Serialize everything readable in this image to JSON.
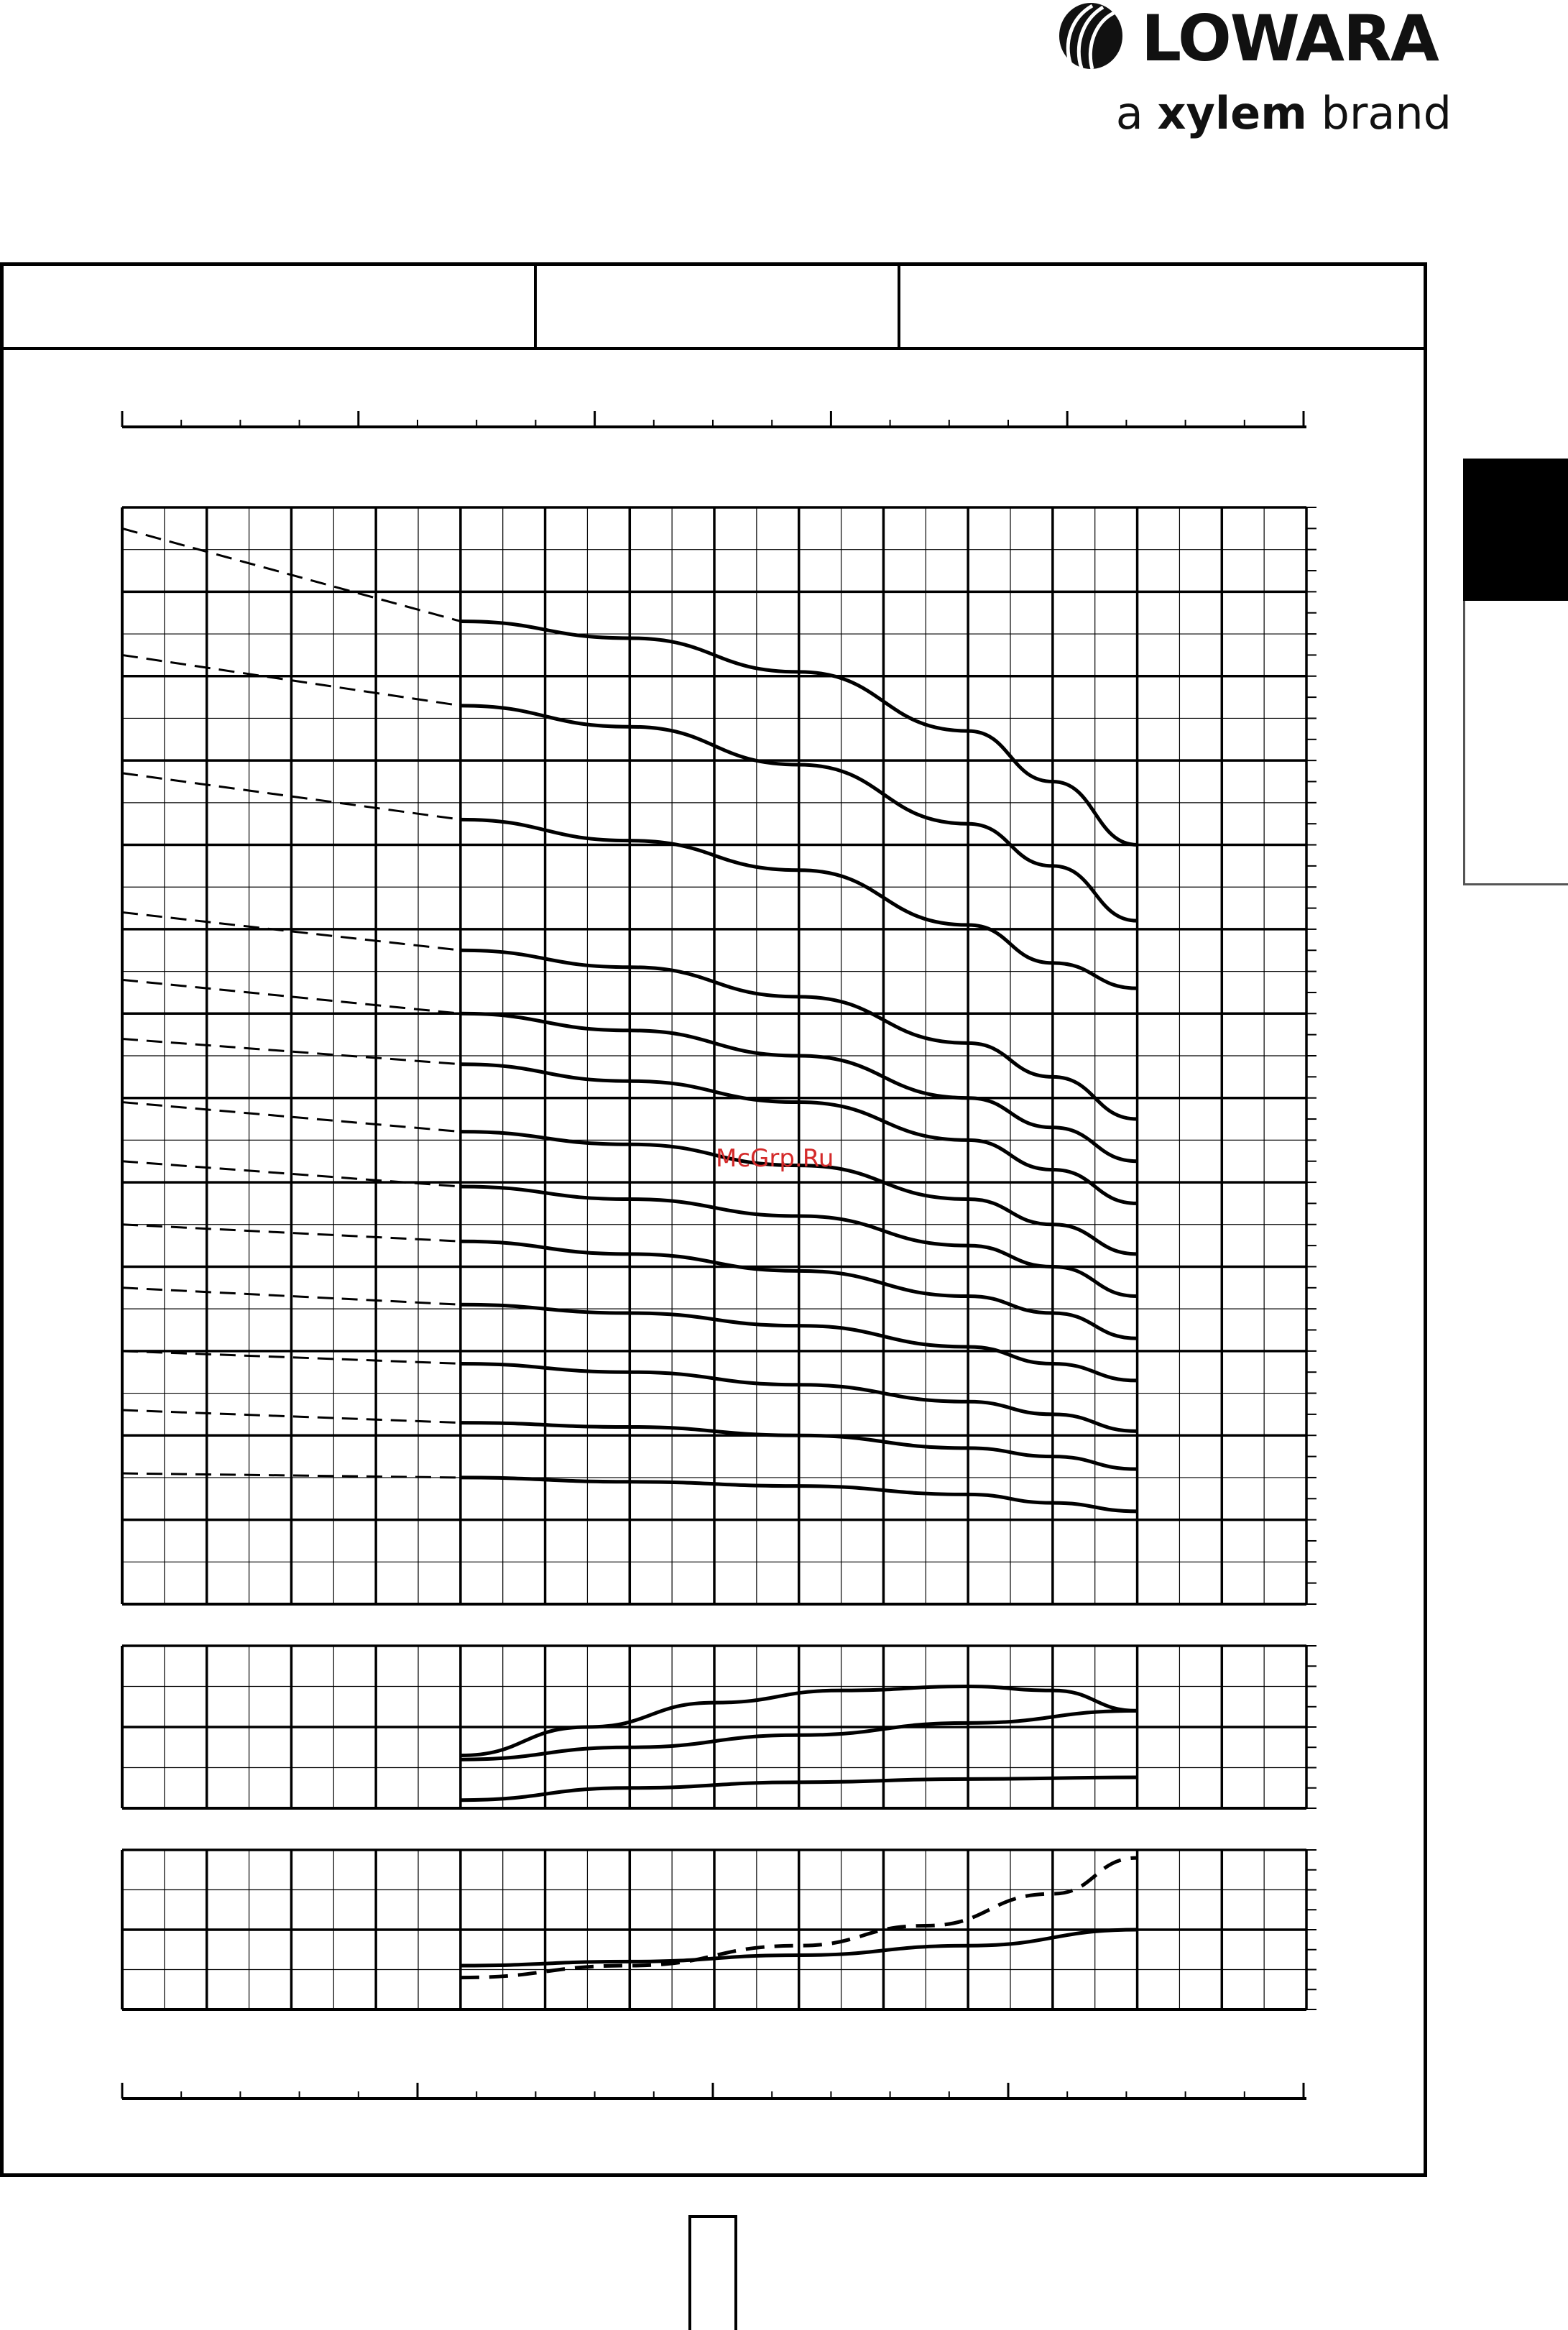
{
  "brand": {
    "name": "LOWARA",
    "tagline_prefix": "a ",
    "tagline_bold": "xylem",
    "tagline_suffix": " brand",
    "logo_icon": "lowara-swirl-icon"
  },
  "header": {
    "cells": [
      "",
      "",
      ""
    ]
  },
  "watermark": "McGrp.Ru",
  "colors": {
    "watermark": "#d42a2a",
    "ink": "#000000",
    "side_tab": "#000000"
  },
  "chart_data": {
    "type": "line",
    "title": "",
    "xlabel": "",
    "ylabel": "",
    "x_range": [
      0,
      14
    ],
    "panels": [
      {
        "id": "head",
        "y_range": [
          0,
          13
        ],
        "grid": true,
        "series": [
          {
            "dashed_x": [
              0,
              4
            ],
            "x": [
              4,
              6,
              8,
              10,
              11,
              12
            ],
            "y": [
              11.65,
              11.45,
              11.05,
              10.35,
              9.75,
              9.0
            ],
            "dashed_start": 12.75
          },
          {
            "dashed_x": [
              0,
              4
            ],
            "x": [
              4,
              6,
              8,
              10,
              11,
              12
            ],
            "y": [
              10.65,
              10.4,
              9.95,
              9.25,
              8.75,
              8.1
            ],
            "dashed_start": 11.25
          },
          {
            "dashed_x": [
              0,
              4
            ],
            "x": [
              4,
              6,
              8,
              10,
              11,
              12
            ],
            "y": [
              9.3,
              9.05,
              8.7,
              8.05,
              7.6,
              7.3
            ],
            "dashed_start": 9.85
          },
          {
            "dashed_x": [
              0,
              4
            ],
            "x": [
              4,
              6,
              8,
              10,
              11,
              12
            ],
            "y": [
              7.75,
              7.55,
              7.2,
              6.65,
              6.25,
              5.75
            ],
            "dashed_start": 8.2
          },
          {
            "dashed_x": [
              0,
              4
            ],
            "x": [
              4,
              6,
              8,
              10,
              11,
              12
            ],
            "y": [
              7.0,
              6.8,
              6.5,
              6.0,
              5.65,
              5.25
            ],
            "dashed_start": 7.4
          },
          {
            "dashed_x": [
              0,
              4
            ],
            "x": [
              4,
              6,
              8,
              10,
              11,
              12
            ],
            "y": [
              6.4,
              6.2,
              5.95,
              5.5,
              5.15,
              4.75
            ],
            "dashed_start": 6.7
          },
          {
            "dashed_x": [
              0,
              4
            ],
            "x": [
              4,
              6,
              8,
              10,
              11,
              12
            ],
            "y": [
              5.6,
              5.45,
              5.2,
              4.8,
              4.5,
              4.15
            ],
            "dashed_start": 5.95
          },
          {
            "dashed_x": [
              0,
              4
            ],
            "x": [
              4,
              6,
              8,
              10,
              11,
              12
            ],
            "y": [
              4.95,
              4.8,
              4.6,
              4.25,
              4.0,
              3.65
            ],
            "dashed_start": 5.25
          },
          {
            "dashed_x": [
              0,
              4
            ],
            "x": [
              4,
              6,
              8,
              10,
              11,
              12
            ],
            "y": [
              4.3,
              4.15,
              3.95,
              3.65,
              3.45,
              3.15
            ],
            "dashed_start": 4.5
          },
          {
            "dashed_x": [
              0,
              4
            ],
            "x": [
              4,
              6,
              8,
              10,
              11,
              12
            ],
            "y": [
              3.55,
              3.45,
              3.3,
              3.05,
              2.85,
              2.65
            ],
            "dashed_start": 3.75
          },
          {
            "dashed_x": [
              0,
              4
            ],
            "x": [
              4,
              6,
              8,
              10,
              11,
              12
            ],
            "y": [
              2.85,
              2.75,
              2.6,
              2.4,
              2.25,
              2.05
            ],
            "dashed_start": 3.0
          },
          {
            "dashed_x": [
              0,
              4
            ],
            "x": [
              4,
              6,
              8,
              10,
              11,
              12
            ],
            "y": [
              2.15,
              2.1,
              2.0,
              1.85,
              1.75,
              1.6
            ],
            "dashed_start": 2.3
          },
          {
            "dashed_x": [
              0,
              4
            ],
            "x": [
              4,
              6,
              8,
              10,
              11,
              12
            ],
            "y": [
              1.5,
              1.45,
              1.4,
              1.3,
              1.2,
              1.1
            ],
            "dashed_start": 1.55
          }
        ]
      },
      {
        "id": "middle",
        "y_range": [
          0,
          2
        ],
        "grid": true,
        "series": [
          {
            "x": [
              4,
              5.5,
              7,
              8.5,
              10,
              11,
              12
            ],
            "y": [
              0.65,
              1.0,
              1.3,
              1.45,
              1.5,
              1.45,
              1.2
            ]
          },
          {
            "x": [
              4,
              6,
              8,
              10,
              12
            ],
            "y": [
              0.6,
              0.75,
              0.9,
              1.05,
              1.2
            ]
          },
          {
            "x": [
              4,
              6,
              8,
              10,
              12
            ],
            "y": [
              0.1,
              0.25,
              0.32,
              0.36,
              0.38
            ]
          }
        ]
      },
      {
        "id": "bottom",
        "y_range": [
          0,
          2
        ],
        "grid": true,
        "series": [
          {
            "x": [
              4,
              6,
              8,
              10,
              12
            ],
            "y": [
              0.55,
              0.6,
              0.68,
              0.8,
              1.0
            ],
            "dashed": false
          },
          {
            "x": [
              4,
              6,
              8,
              9.5,
              11,
              12
            ],
            "y": [
              0.4,
              0.55,
              0.8,
              1.05,
              1.45,
              1.9
            ],
            "dashed": true
          }
        ]
      }
    ]
  }
}
